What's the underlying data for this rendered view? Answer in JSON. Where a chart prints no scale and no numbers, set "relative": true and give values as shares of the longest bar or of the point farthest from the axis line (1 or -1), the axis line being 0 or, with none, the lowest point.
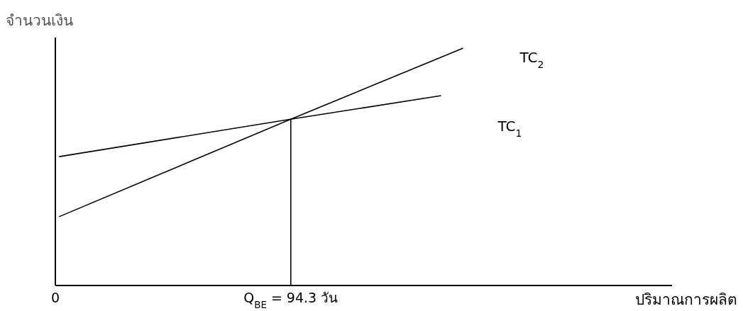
{
  "chart_data": {
    "type": "line",
    "relative": true,
    "ylabel": "จำนวนเงิน",
    "xlabel": "ปริมาณการผลิต",
    "xlim": [
      0,
      247
    ],
    "xticks": [
      0,
      {
        "value": 94.3,
        "label": "Q$_{BE}$ = 94.3 วัน"
      }
    ],
    "series": [
      {
        "name": "TC$_{2}$",
        "color": "#000000",
        "x": [
          1.5,
          94.3,
          163.3
        ],
        "values": [
          0.29,
          0.701,
          1
        ]
      },
      {
        "name": "TC$_{1}$",
        "color": "#000000",
        "x": [
          1.5,
          94.3,
          154.5
        ],
        "values": [
          0.543,
          0.701,
          0.8
        ]
      }
    ],
    "ref_lines": [
      {
        "axis": "x",
        "value": 94.3,
        "color": "#000000",
        "line_style": "solid"
      }
    ],
    "grid": false,
    "legend": false,
    "marker": "none",
    "line_style": "solid"
  }
}
